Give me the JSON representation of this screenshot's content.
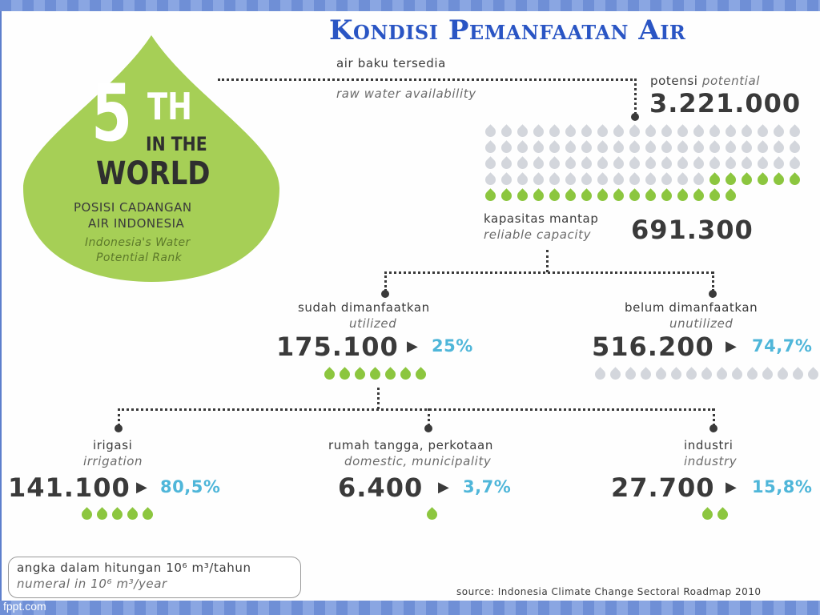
{
  "title": "Kondisi Pemanfaatan Air",
  "rank": {
    "number": "5",
    "suffix": "TH",
    "line2": "IN THE",
    "line3": "WORLD",
    "caption_id_1": "POSISI CADANGAN",
    "caption_id_2": "AIR INDONESIA",
    "caption_en_1": "Indonesia's Water",
    "caption_en_2": "Potential Rank"
  },
  "raw_water": {
    "label_id": "air baku tersedia",
    "label_en": "raw water availability"
  },
  "potential": {
    "label_id": "potensi",
    "label_en": "potential",
    "value": "3.221.000"
  },
  "reliable": {
    "label_id": "kapasitas mantap",
    "label_en": "reliable capacity",
    "value": "691.300"
  },
  "utilized": {
    "label_id": "sudah dimanfaatkan",
    "label_en": "utilized",
    "value": "175.100",
    "percent": "25%"
  },
  "unutilized": {
    "label_id": "belum dimanfaatkan",
    "label_en": "unutilized",
    "value": "516.200",
    "percent": "74,7%"
  },
  "irrigation": {
    "label_id": "irigasi",
    "label_en": "irrigation",
    "value": "141.100",
    "percent": "80,5%"
  },
  "domestic": {
    "label_id": "rumah tangga, perkotaan",
    "label_en": "domestic, municipality",
    "value": "6.400",
    "percent": "3,7%"
  },
  "industry": {
    "label_id": "industri",
    "label_en": "industry",
    "value": "27.700",
    "percent": "15,8%"
  },
  "footnote": {
    "line_id": "angka dalam hitungan 10⁶ m³/tahun",
    "line_en": "numeral in 10⁶ m³/year"
  },
  "source": "source: Indonesia Climate Change Sectoral Roadmap 2010",
  "watermark": "fppt.com",
  "drops": {
    "potential_grey": 74,
    "potential_green": 22,
    "utilized": 7,
    "unutilized": 15,
    "irrigation": 5,
    "domestic": 1,
    "industry": 2
  },
  "colors": {
    "green": "#8cc63f",
    "grey": "#d3d6dc",
    "accent_blue": "#4fb6d9",
    "title_blue": "#2a55c4"
  }
}
